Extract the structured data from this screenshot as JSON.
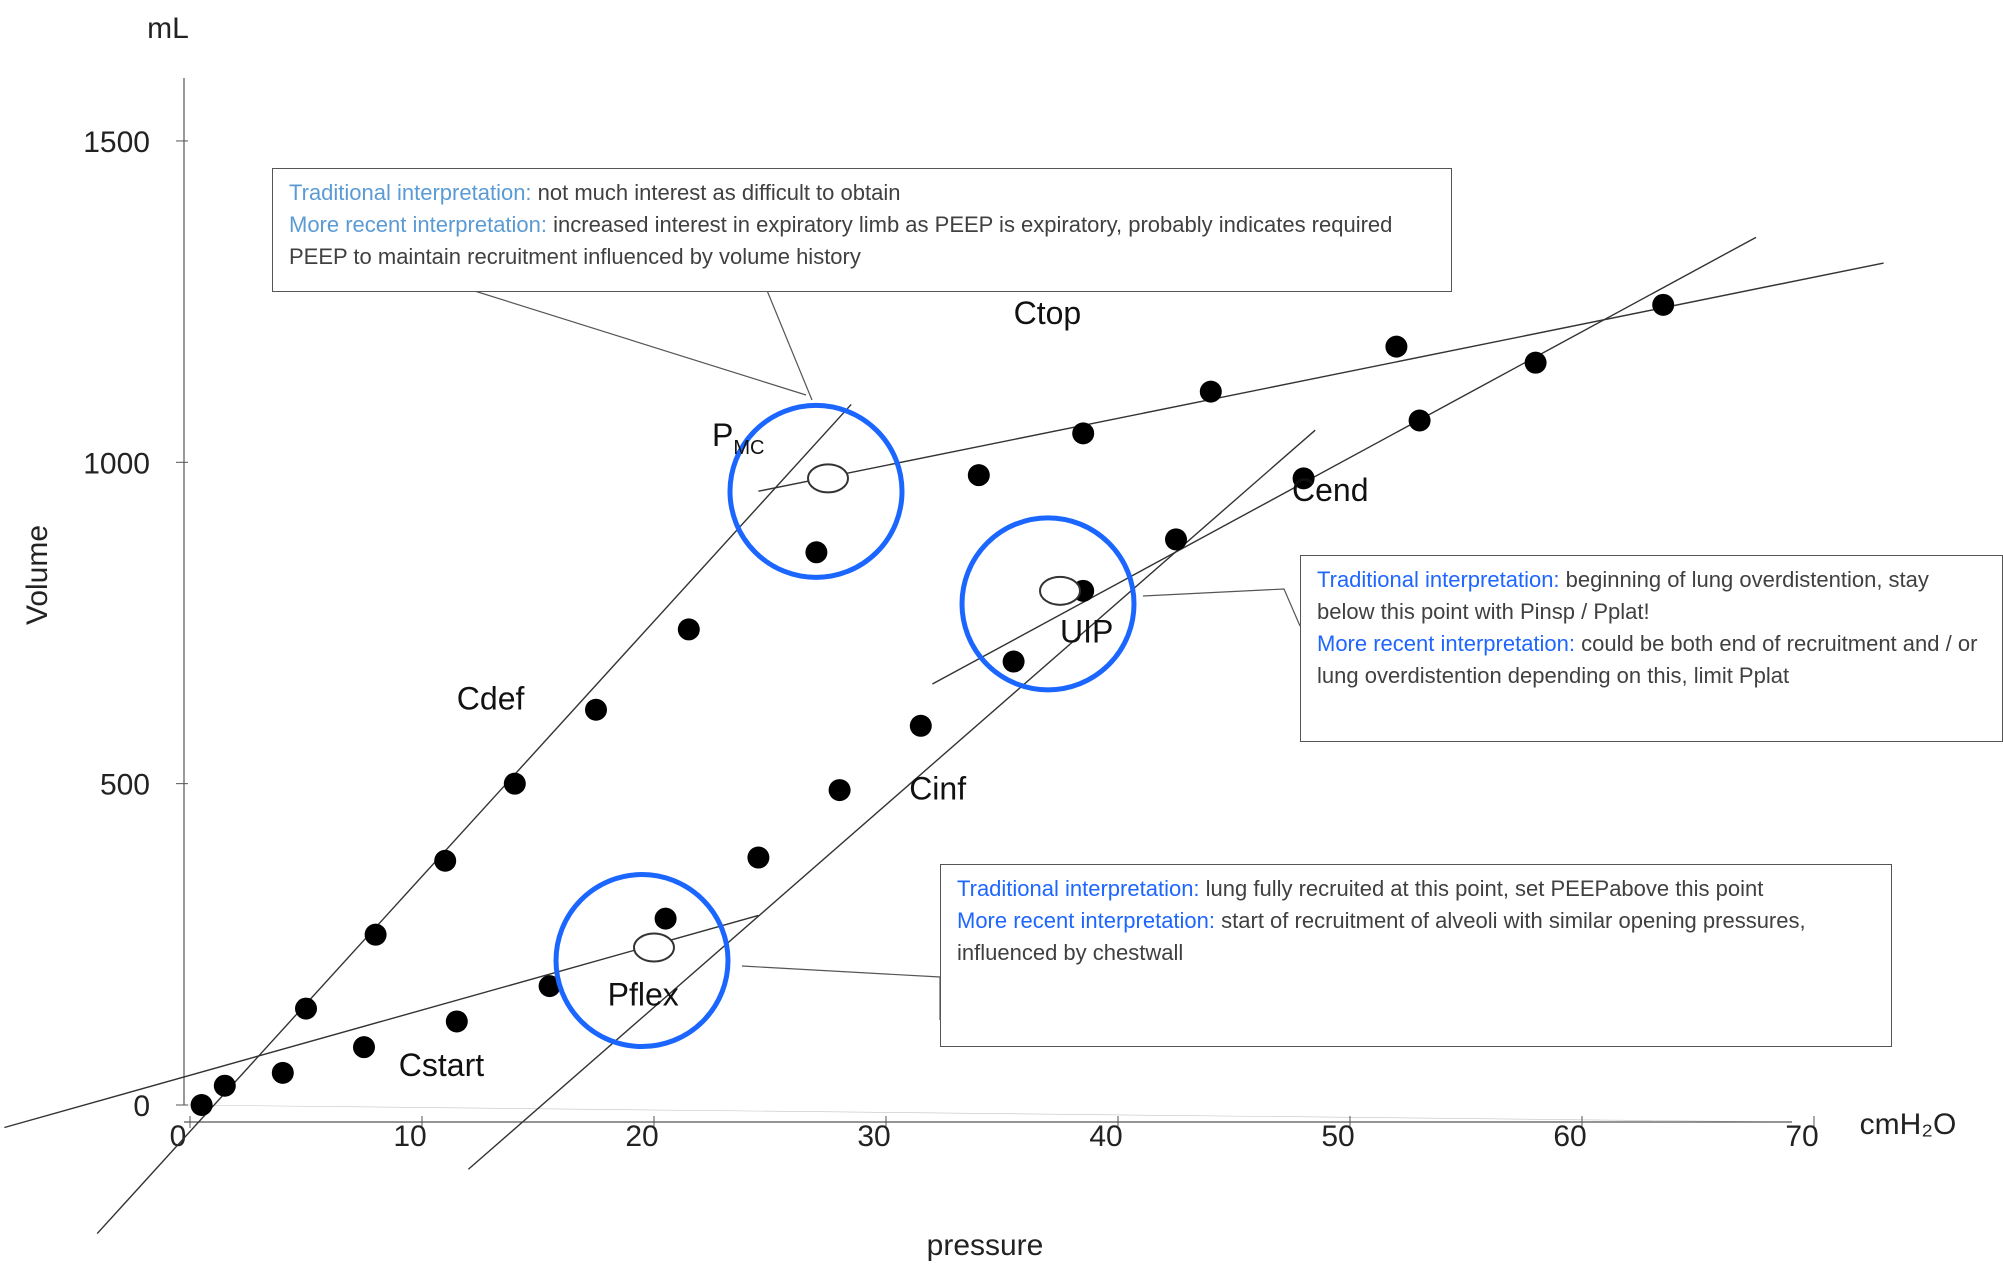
{
  "chart_data": {
    "type": "scatter",
    "title": "",
    "xlabel": "pressure",
    "ylabel": "Volume",
    "x_unit": "cmH₂O",
    "y_unit": "mL",
    "xlim": [
      0,
      70
    ],
    "ylim": [
      0,
      1500
    ],
    "x_ticks": [
      "0",
      "10",
      "20",
      "30",
      "40",
      "50",
      "60",
      "70"
    ],
    "y_ticks": [
      "0",
      "500",
      "1000",
      "1500"
    ],
    "series": [
      {
        "role": "inflation",
        "points": [
          [
            0.5,
            0
          ],
          [
            1.5,
            30
          ],
          [
            4,
            50
          ],
          [
            7.5,
            90
          ],
          [
            11.5,
            130
          ],
          [
            15.5,
            185
          ],
          [
            20.5,
            290
          ],
          [
            24.5,
            385
          ],
          [
            28,
            490
          ],
          [
            31.5,
            590
          ],
          [
            35.5,
            690
          ],
          [
            38.5,
            800
          ],
          [
            42.5,
            880
          ],
          [
            48,
            975
          ],
          [
            53,
            1065
          ],
          [
            58,
            1155
          ],
          [
            63.5,
            1245
          ]
        ]
      },
      {
        "role": "deflation",
        "points": [
          [
            5,
            150
          ],
          [
            8,
            265
          ],
          [
            11,
            380
          ],
          [
            14,
            500
          ],
          [
            17.5,
            615
          ],
          [
            21.5,
            740
          ],
          [
            27,
            860
          ],
          [
            34,
            980
          ],
          [
            38.5,
            1045
          ],
          [
            44,
            1110
          ],
          [
            52,
            1180
          ]
        ]
      }
    ],
    "fit_lines": [
      {
        "name": "Cstart",
        "from": [
          -8,
          -35
        ],
        "to": [
          24.5,
          295
        ]
      },
      {
        "name": "Cinf",
        "from": [
          12,
          -100
        ],
        "to": [
          48.5,
          1050
        ]
      },
      {
        "name": "Cend",
        "from": [
          32,
          655
        ],
        "to": [
          67.5,
          1350
        ]
      },
      {
        "name": "Cdef",
        "from": [
          -4,
          -200
        ],
        "to": [
          28.5,
          1090
        ]
      },
      {
        "name": "Ctop",
        "from": [
          24.5,
          955
        ],
        "to": [
          73,
          1310
        ]
      }
    ],
    "inflection_points": [
      {
        "name": "Pflex",
        "x": 20,
        "y": 245
      },
      {
        "name": "UIP",
        "x": 37.5,
        "y": 800
      },
      {
        "name": "P_MC",
        "x": 27.5,
        "y": 975
      }
    ],
    "labels": [
      {
        "text": "Ctop",
        "x": 35.5,
        "y": 1215
      },
      {
        "text": "Cend",
        "x": 47.5,
        "y": 940
      },
      {
        "text": "Cdef",
        "x": 11.5,
        "y": 615
      },
      {
        "text": "Cinf",
        "x": 31,
        "y": 475
      },
      {
        "text": "Pflex",
        "x": 18,
        "y": 155
      },
      {
        "text": "Cstart",
        "x": 9,
        "y": 45
      },
      {
        "text": "UIP",
        "x": 37.5,
        "y": 720
      },
      {
        "text": "P",
        "sub": "MC",
        "x": 22.5,
        "y": 1025
      }
    ],
    "highlight_circles": [
      {
        "target": "Pflex",
        "color": "#1a66ff"
      },
      {
        "target": "UIP",
        "color": "#1a66ff"
      },
      {
        "target": "P_MC",
        "color": "#1a66ff"
      }
    ],
    "annotations": [
      {
        "target": "P_MC",
        "traditional_label": "Traditional interpretation:",
        "traditional_text": " not much interest as difficult to obtain",
        "recent_label": "More recent interpretation:",
        "recent_text": " increased interest in expiratory limb as PEEP is expiratory, probably indicates required PEEP to maintain recruitment influenced by volume history"
      },
      {
        "target": "UIP",
        "traditional_label": "Traditional interpretation:",
        "traditional_text": " beginning of lung overdistention, stay below this point with Pinsp / Pplat!",
        "recent_label": "More recent interpretation:",
        "recent_text": " could be both end of recruitment and / or lung overdistention depending on this, limit Pplat"
      },
      {
        "target": "Pflex",
        "traditional_label": "Traditional interpretation:",
        "traditional_text": " lung fully recruited at this point, set PEEPabove this point",
        "recent_label": "More recent interpretation:",
        "recent_text": " start of recruitment of alveoli with similar opening pressures, influenced by chestwall"
      }
    ],
    "colors": {
      "axis": "#555555",
      "points": "#000000",
      "circle": "#1a66ff",
      "label_blue": "#1f66ff",
      "label_light_blue": "#5b9bd5",
      "text": "#404040"
    },
    "grid": false,
    "legend": "none"
  }
}
